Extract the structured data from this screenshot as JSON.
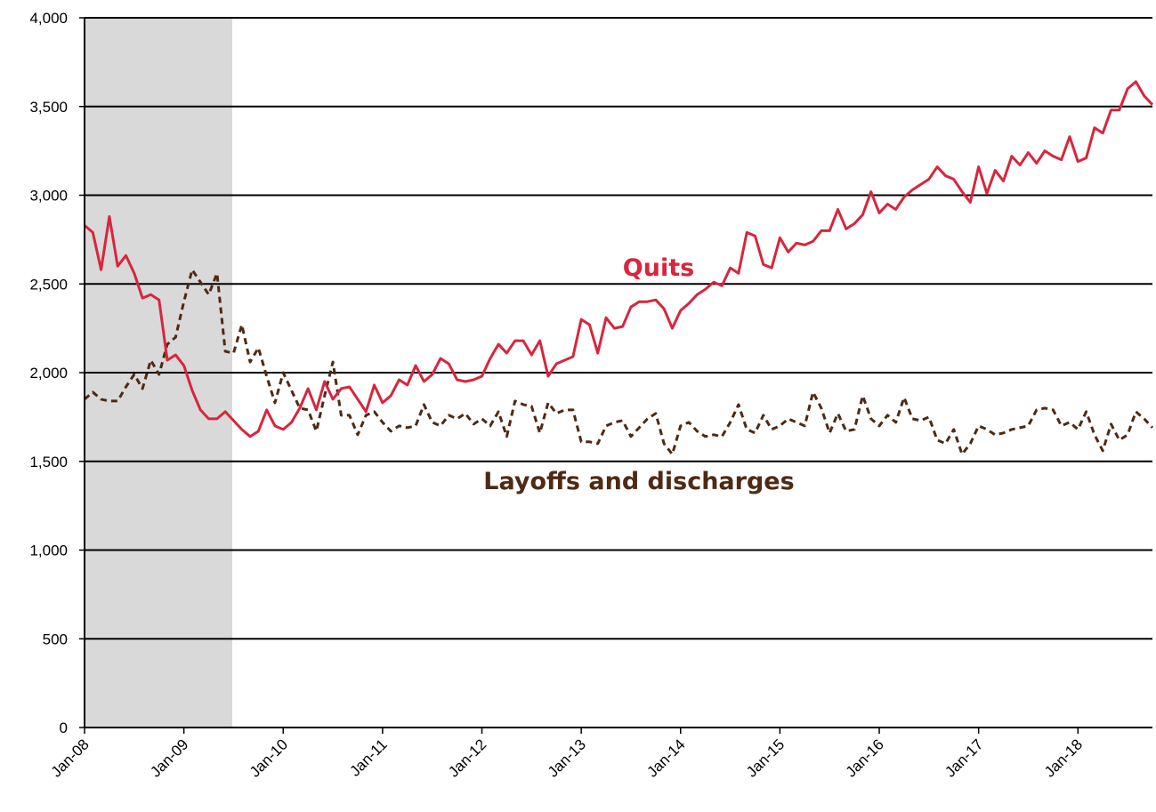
{
  "chart_data": {
    "type": "line",
    "categories": [
      "Jan-08",
      null,
      null,
      null,
      null,
      null,
      null,
      null,
      null,
      null,
      null,
      null,
      "Jan-09",
      null,
      null,
      null,
      null,
      null,
      null,
      null,
      null,
      null,
      null,
      null,
      "Jan-10",
      null,
      null,
      null,
      null,
      null,
      null,
      null,
      null,
      null,
      null,
      null,
      "Jan-11",
      null,
      null,
      null,
      null,
      null,
      null,
      null,
      null,
      null,
      null,
      null,
      "Jan-12",
      null,
      null,
      null,
      null,
      null,
      null,
      null,
      null,
      null,
      null,
      null,
      "Jan-13",
      null,
      null,
      null,
      null,
      null,
      null,
      null,
      null,
      null,
      null,
      null,
      "Jan-14",
      null,
      null,
      null,
      null,
      null,
      null,
      null,
      null,
      null,
      null,
      null,
      "Jan-15",
      null,
      null,
      null,
      null,
      null,
      null,
      null,
      null,
      null,
      null,
      null,
      "Jan-16",
      null,
      null,
      null,
      null,
      null,
      null,
      null,
      null,
      null,
      null,
      null,
      "Jan-17",
      null,
      null,
      null,
      null,
      null,
      null,
      null,
      null,
      null,
      null,
      null,
      "Jan-18",
      null,
      null,
      null,
      null,
      null,
      null,
      null,
      null,
      null
    ],
    "series": [
      {
        "name": "Quits",
        "color": "#d7263d",
        "dashed": false,
        "values": [
          2830,
          2790,
          2580,
          2880,
          2600,
          2660,
          2560,
          2420,
          2440,
          2410,
          2070,
          2100,
          2040,
          1900,
          1790,
          1740,
          1740,
          1780,
          1730,
          1680,
          1640,
          1670,
          1790,
          1700,
          1680,
          1720,
          1800,
          1910,
          1790,
          1950,
          1850,
          1910,
          1920,
          1850,
          1780,
          1930,
          1830,
          1870,
          1960,
          1930,
          2040,
          1950,
          1990,
          2080,
          2050,
          1960,
          1950,
          1960,
          1980,
          2080,
          2160,
          2110,
          2180,
          2180,
          2100,
          2180,
          1980,
          2050,
          2070,
          2090,
          2300,
          2270,
          2110,
          2310,
          2250,
          2260,
          2370,
          2400,
          2400,
          2410,
          2360,
          2250,
          2350,
          2390,
          2440,
          2470,
          2510,
          2490,
          2590,
          2560,
          2790,
          2770,
          2610,
          2590,
          2760,
          2680,
          2730,
          2720,
          2740,
          2800,
          2800,
          2920,
          2810,
          2840,
          2890,
          3020,
          2900,
          2950,
          2920,
          2990,
          3030,
          3060,
          3090,
          3160,
          3110,
          3090,
          3020,
          2960,
          3160,
          3010,
          3140,
          3080,
          3220,
          3170,
          3240,
          3180,
          3250,
          3220,
          3200,
          3330,
          3190,
          3210,
          3380,
          3350,
          3480,
          3480,
          3600,
          3640,
          3560,
          3510
        ]
      },
      {
        "name": "Layoffs and discharges",
        "color": "#4e2a14",
        "dashed": true,
        "values": [
          1850,
          1890,
          1850,
          1840,
          1840,
          1920,
          1990,
          1910,
          2070,
          1990,
          2160,
          2200,
          2400,
          2580,
          2510,
          2440,
          2560,
          2120,
          2110,
          2270,
          2060,
          2140,
          1980,
          1830,
          2000,
          1900,
          1800,
          1790,
          1670,
          1870,
          2060,
          1760,
          1760,
          1650,
          1760,
          1780,
          1720,
          1670,
          1700,
          1690,
          1700,
          1820,
          1720,
          1700,
          1760,
          1740,
          1770,
          1710,
          1740,
          1700,
          1780,
          1640,
          1840,
          1820,
          1810,
          1660,
          1830,
          1770,
          1790,
          1790,
          1610,
          1610,
          1600,
          1700,
          1720,
          1730,
          1640,
          1690,
          1740,
          1770,
          1600,
          1540,
          1700,
          1720,
          1670,
          1640,
          1650,
          1640,
          1720,
          1820,
          1680,
          1660,
          1760,
          1680,
          1700,
          1740,
          1720,
          1700,
          1890,
          1800,
          1660,
          1770,
          1670,
          1680,
          1870,
          1740,
          1700,
          1760,
          1720,
          1860,
          1740,
          1730,
          1750,
          1620,
          1600,
          1680,
          1540,
          1600,
          1700,
          1680,
          1650,
          1660,
          1680,
          1690,
          1700,
          1790,
          1800,
          1790,
          1700,
          1720,
          1680,
          1780,
          1650,
          1560,
          1710,
          1620,
          1650,
          1780,
          1740,
          1690
        ]
      }
    ],
    "ylim": [
      0,
      4000
    ],
    "yticks": [
      0,
      500,
      {
        "value": 1000,
        "label": "1,000"
      },
      {
        "value": 1500,
        "label": "1,500"
      },
      {
        "value": 2000,
        "label": "2,000"
      },
      {
        "value": 2500,
        "label": "2,500"
      },
      {
        "value": 3000,
        "label": "3,000"
      },
      {
        "value": 3500,
        "label": "3,500"
      },
      {
        "value": 4000,
        "label": "4,000"
      }
    ],
    "grid": true
  }
}
